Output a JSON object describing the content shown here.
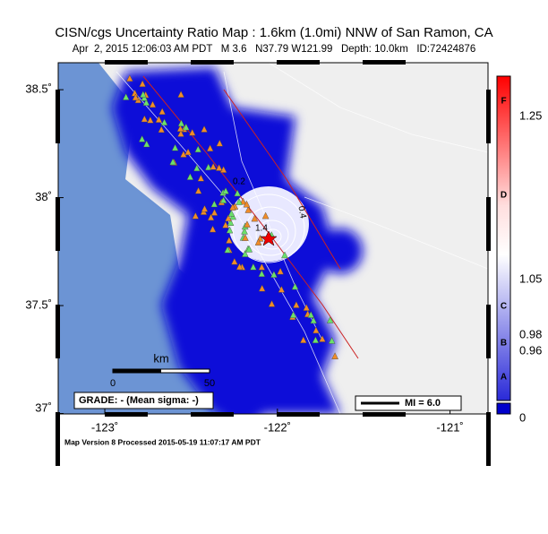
{
  "title": "CISN/cgs Uncertainty Ratio Map : 1.6km (1.0mi) NNW of San Ramon, CA",
  "subtitle": "Apr  2, 2015 12:06:03 AM PDT   M 3.6   N37.79 W121.99   Depth: 10.0km   ID:72424876",
  "map": {
    "lat_range": [
      36.998,
      38.625
    ],
    "lon_range": [
      -123.27,
      -120.78
    ],
    "lat_ticks": [
      {
        "value": 38.5,
        "label": "38.5˚"
      },
      {
        "value": 38,
        "label": "38˚"
      },
      {
        "value": 37.5,
        "label": "37.5˚"
      },
      {
        "value": 37,
        "label": "37˚"
      }
    ],
    "lon_ticks": [
      {
        "value": -123,
        "label": "-123˚"
      },
      {
        "value": -122,
        "label": "-122˚"
      },
      {
        "value": -121,
        "label": "-121˚"
      }
    ],
    "contour_labels": [
      "0.2",
      "0.4",
      "1.4"
    ],
    "scale_bar": {
      "unit": "km",
      "ticks": [
        "0",
        "50"
      ]
    },
    "grade": "GRADE: - (Mean sigma: -)",
    "mi_legend": "MI = 6.0"
  },
  "colorbar": {
    "ticks": [
      "1.25",
      "1.05",
      "0.98",
      "0.96",
      "0"
    ],
    "grades": [
      "F",
      "D",
      "C",
      "B",
      "A"
    ]
  },
  "footer": "Map Version 8 Processed 2015-05-19 11:07:17 AM PDT"
}
